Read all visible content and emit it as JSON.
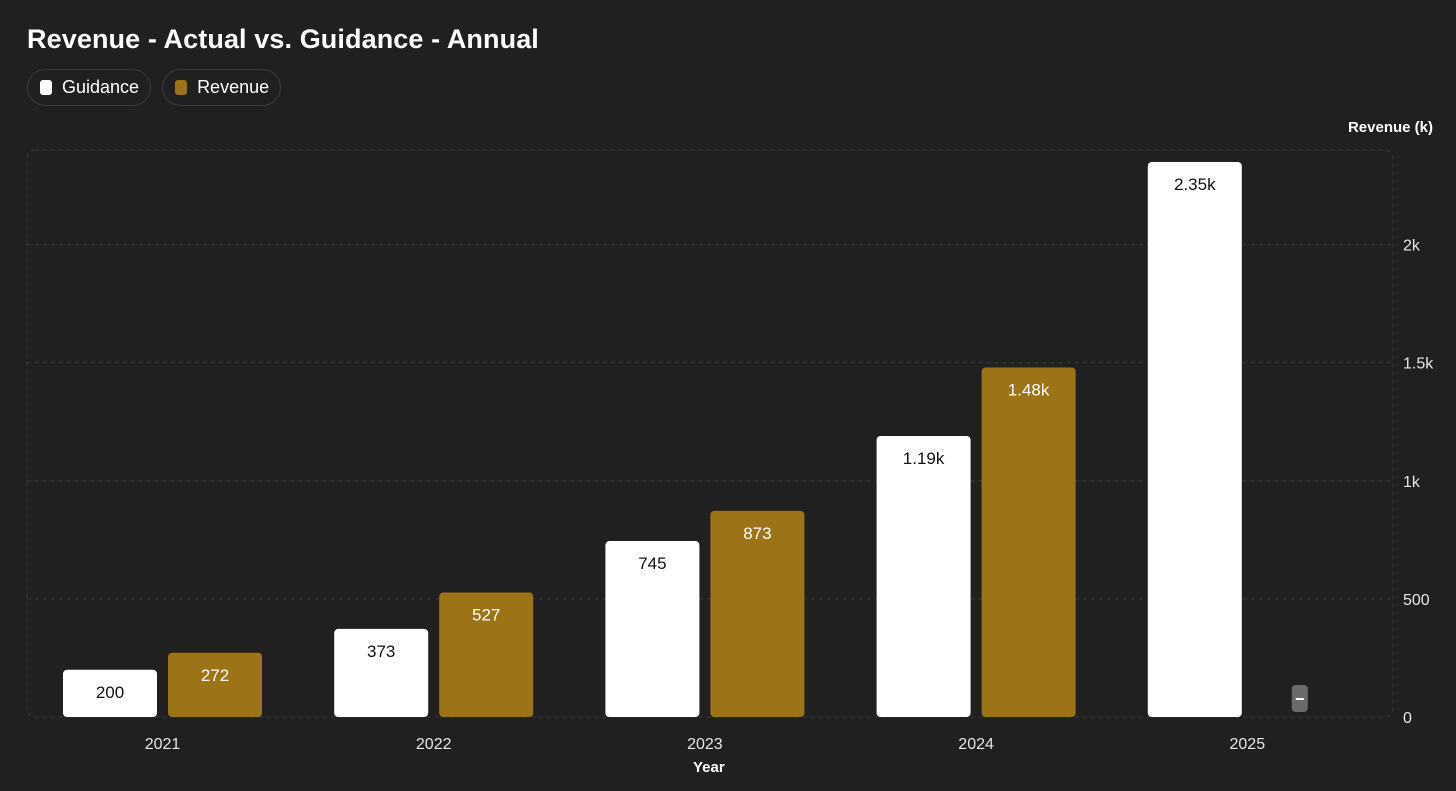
{
  "chart_data": {
    "type": "bar",
    "title": "Revenue - Actual vs. Guidance - Annual",
    "xlabel": "Year",
    "ylabel": "Revenue (k)",
    "categories": [
      "2021",
      "2022",
      "2023",
      "2024",
      "2025"
    ],
    "series": [
      {
        "name": "Guidance",
        "color": "#ffffff",
        "label_color": "#111111",
        "values": [
          200,
          373,
          745,
          1190,
          2350
        ],
        "labels": [
          "200",
          "373",
          "745",
          "1.19k",
          "2.35k"
        ]
      },
      {
        "name": "Revenue",
        "color": "#9c7417",
        "label_color": "#ffffff",
        "values": [
          272,
          527,
          873,
          1480,
          null
        ],
        "labels": [
          "272",
          "527",
          "873",
          "1.48k",
          ""
        ]
      }
    ],
    "ylim": [
      0,
      2350
    ],
    "yticks": [
      0,
      500,
      1000,
      1500,
      2000
    ],
    "ytick_labels": [
      "0",
      "500",
      "1k",
      "1.5k",
      "2k"
    ],
    "y_axis_side": "right",
    "grid": true,
    "legend_position": "top-left"
  }
}
